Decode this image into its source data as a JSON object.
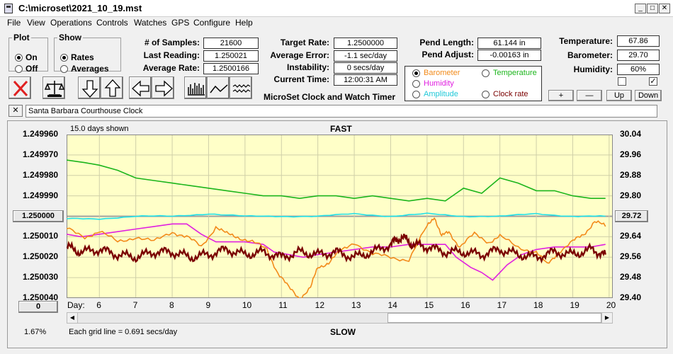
{
  "window": {
    "title": "C:\\microset\\2021_10_19.mst"
  },
  "menu": [
    "File",
    "View",
    "Operations",
    "Controls",
    "Watches",
    "GPS",
    "Configure",
    "Help"
  ],
  "plot_group": {
    "label": "Plot",
    "on": "On",
    "off": "Off",
    "selected": "On"
  },
  "show_group": {
    "label": "Show",
    "rates": "Rates",
    "averages": "Averages",
    "selected": "Rates"
  },
  "readings": {
    "samples_label": "# of Samples:",
    "samples": "21600",
    "last_label": "Last Reading:",
    "last": "1.250021",
    "avg_rate_label": "Average Rate:",
    "avg_rate": "1.2500166",
    "target_label": "Target Rate:",
    "target": "1.2500000",
    "avg_error_label": "Average Error:",
    "avg_error": "-1.1 sec/day",
    "instability_label": "Instability:",
    "instability": "0 secs/day",
    "time_label": "Current Time:",
    "time": "12:00:31 AM",
    "pend_length_label": "Pend Length:",
    "pend_length": "61.144 in",
    "pend_adjust_label": "Pend Adjust:",
    "pend_adjust": "-0.00163 in",
    "temp_label": "Temperature:",
    "temp": "67.86",
    "baro_label": "Barometer:",
    "baro": "29.70",
    "humidity_label": "Humidity:",
    "humidity": "60%"
  },
  "app_caption": "MicroSet Clock and Watch Timer",
  "legend": {
    "barometer": "Barometer",
    "temperature": "Temperature",
    "humidity": "Humidity",
    "amplitude": "Amplitude",
    "clock_rate": "Clock rate",
    "selected": "Barometer"
  },
  "scale_buttons": {
    "plus": "+",
    "minus": "—",
    "up": "Up",
    "down": "Down"
  },
  "watch_name": "Santa Barbara Courthouse Clock",
  "chart_header": {
    "days_shown": "15.0 days shown",
    "fast": "FAST",
    "slow": "SLOW",
    "grid_note": "Each grid line = 0.691 secs/day",
    "percent": "1.67%",
    "day_label": "Day:",
    "left_center_btn": "1.250000",
    "right_center_btn": "29.72",
    "left_bottom_btn": "0"
  },
  "colors": {
    "plot_bg": "#ffffc8",
    "barometer": "#f28a1a",
    "temperature": "#1cb51c",
    "humidity": "#e020e0",
    "amplitude": "#20e0e8",
    "clock_rate": "#7a0000"
  },
  "chart_data": {
    "type": "line",
    "x_axis": {
      "label": "Day:",
      "ticks": [
        6,
        7,
        8,
        9,
        10,
        11,
        12,
        13,
        14,
        15,
        16,
        17,
        18,
        19,
        20
      ],
      "range": [
        5.1,
        20.1
      ]
    },
    "y_left": {
      "ticks": [
        "1.249960",
        "1.249970",
        "1.249980",
        "1.249990",
        "1.250000",
        "1.250010",
        "1.250020",
        "1.250030",
        "1.250040"
      ],
      "range": [
        1.24996,
        1.25004
      ],
      "inverted": true
    },
    "y_right": {
      "ticks": [
        "30.04",
        "29.96",
        "29.88",
        "29.80",
        "29.72",
        "29.64",
        "29.56",
        "29.48",
        "29.40"
      ],
      "range": [
        29.4,
        30.04
      ]
    },
    "series": [
      {
        "key": "temperature",
        "x": [
          5.1,
          5.6,
          6.0,
          6.5,
          7.0,
          7.5,
          8.0,
          8.5,
          9.0,
          9.5,
          10.0,
          10.5,
          11.0,
          11.5,
          12.0,
          12.5,
          13.0,
          13.5,
          14.0,
          14.5,
          15.0,
          15.5,
          16.0,
          16.5,
          17.0,
          17.5,
          18.0,
          18.5,
          19.0,
          19.5,
          19.9
        ],
        "y": [
          29.94,
          29.93,
          29.92,
          29.9,
          29.87,
          29.86,
          29.85,
          29.84,
          29.83,
          29.82,
          29.81,
          29.8,
          29.8,
          29.79,
          29.8,
          29.8,
          29.79,
          29.8,
          29.79,
          29.78,
          29.79,
          29.78,
          29.83,
          29.81,
          29.87,
          29.85,
          29.82,
          29.82,
          29.8,
          29.79,
          29.79
        ]
      },
      {
        "key": "amplitude",
        "x": [
          5.1,
          6.0,
          7.0,
          8.0,
          9.0,
          10.0,
          11.0,
          12.0,
          13.0,
          14.0,
          15.0,
          16.0,
          17.0,
          18.0,
          19.0,
          19.9
        ],
        "y": [
          29.71,
          29.71,
          29.72,
          29.72,
          29.73,
          29.72,
          29.72,
          29.72,
          29.73,
          29.72,
          29.73,
          29.72,
          29.72,
          29.73,
          29.72,
          29.72
        ]
      },
      {
        "key": "humidity",
        "x": [
          5.1,
          5.5,
          6.0,
          6.5,
          7.0,
          7.5,
          8.0,
          8.4,
          8.8,
          9.2,
          9.6,
          10.0,
          10.5,
          10.8,
          11.2,
          11.6,
          12.0,
          12.5,
          13.0,
          13.5,
          14.0,
          14.5,
          15.0,
          15.5,
          15.8,
          16.2,
          16.5,
          16.8,
          17.2,
          17.6,
          18.0,
          18.5,
          19.0,
          19.5,
          19.9
        ],
        "y": [
          29.65,
          29.64,
          29.65,
          29.66,
          29.67,
          29.68,
          29.69,
          29.69,
          29.65,
          29.62,
          29.62,
          29.62,
          29.61,
          29.58,
          29.57,
          29.56,
          29.57,
          29.58,
          29.59,
          29.6,
          29.6,
          29.61,
          29.61,
          29.61,
          29.56,
          29.52,
          29.5,
          29.47,
          29.53,
          29.57,
          29.59,
          29.6,
          29.6,
          29.6,
          29.61
        ]
      },
      {
        "key": "barometer",
        "x": [
          5.1,
          5.6,
          6.0,
          6.5,
          7.0,
          7.5,
          8.0,
          8.4,
          8.8,
          9.2,
          9.5,
          9.8,
          10.2,
          10.6,
          10.9,
          11.2,
          11.5,
          11.8,
          12.0,
          12.3,
          12.6,
          13.0,
          13.5,
          14.0,
          14.5,
          15.0,
          15.2,
          15.4,
          15.6,
          15.9,
          16.3,
          16.7,
          17.0,
          17.5,
          18.0,
          18.3,
          18.6,
          19.0,
          19.3,
          19.6,
          19.9
        ],
        "y": [
          29.67,
          29.64,
          29.66,
          29.62,
          29.64,
          29.62,
          29.66,
          29.64,
          29.6,
          29.68,
          29.65,
          29.64,
          29.62,
          29.59,
          29.5,
          29.44,
          29.4,
          29.44,
          29.52,
          29.54,
          29.58,
          29.62,
          29.57,
          29.56,
          29.55,
          29.68,
          29.72,
          29.64,
          29.66,
          29.6,
          29.65,
          29.62,
          29.64,
          29.6,
          29.58,
          29.53,
          29.58,
          29.62,
          29.65,
          29.7,
          29.68
        ]
      },
      {
        "key": "clock_rate",
        "x": [
          5.1,
          5.5,
          6.0,
          6.5,
          7.0,
          7.5,
          8.0,
          8.5,
          9.0,
          9.5,
          10.0,
          10.5,
          11.0,
          11.5,
          12.0,
          12.5,
          13.0,
          13.5,
          14.0,
          14.3,
          14.6,
          15.0,
          15.5,
          16.0,
          16.5,
          17.0,
          17.5,
          18.0,
          18.5,
          19.0,
          19.5,
          19.9
        ],
        "y": [
          29.6,
          29.58,
          29.59,
          29.57,
          29.56,
          29.58,
          29.58,
          29.56,
          29.57,
          29.59,
          29.57,
          29.58,
          29.56,
          29.58,
          29.57,
          29.58,
          29.56,
          29.58,
          29.61,
          29.64,
          29.61,
          29.6,
          29.58,
          29.58,
          29.57,
          29.59,
          29.57,
          29.56,
          29.58,
          29.57,
          29.59,
          29.57
        ]
      }
    ]
  }
}
